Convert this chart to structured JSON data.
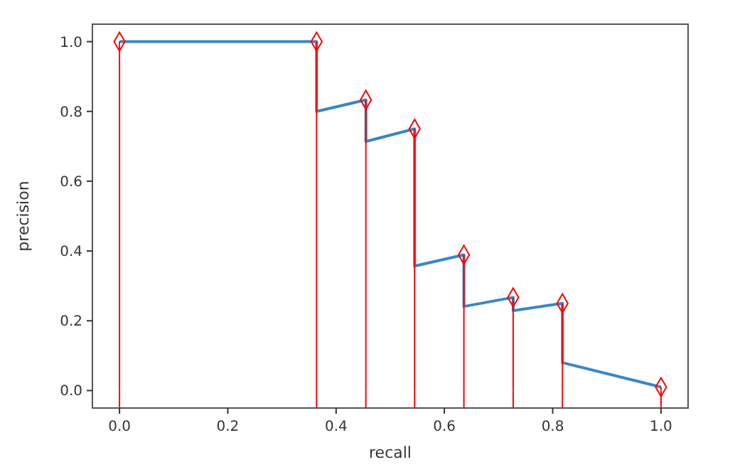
{
  "chart_data": {
    "type": "line",
    "xlabel": "recall",
    "ylabel": "precision",
    "xlim": [
      -0.05,
      1.05
    ],
    "ylim": [
      -0.05,
      1.05
    ],
    "xticks": [
      {
        "value": 0,
        "label": "0.0"
      },
      0.2,
      0.4,
      0.6,
      0.8,
      {
        "value": 1,
        "label": "1.0"
      }
    ],
    "yticks": [
      {
        "value": 0,
        "label": "0.0"
      },
      0.2,
      0.4,
      0.6,
      0.8,
      {
        "value": 1,
        "label": "1.0"
      }
    ],
    "grid": false,
    "series": [
      {
        "color": "#3a87c2",
        "marker": "none",
        "x": [
          0,
          0.364,
          0.364,
          0.455,
          0.455,
          0.545,
          0.545,
          0.636,
          0.636,
          0.727,
          0.727,
          0.818,
          0.818,
          1.0
        ],
        "values": [
          1.0,
          1.0,
          0.8,
          0.833,
          0.714,
          0.75,
          0.357,
          0.389,
          0.241,
          0.267,
          0.229,
          0.25,
          0.08,
          0.01
        ]
      },
      {
        "type": "lollipop",
        "color": "#ff0000",
        "marker": "diamond",
        "x": [
          0,
          0.364,
          0.455,
          0.545,
          0.636,
          0.727,
          0.818,
          1.0
        ],
        "values": [
          1.0,
          1.0,
          0.833,
          0.75,
          0.389,
          0.267,
          0.25,
          0.01
        ]
      }
    ]
  }
}
